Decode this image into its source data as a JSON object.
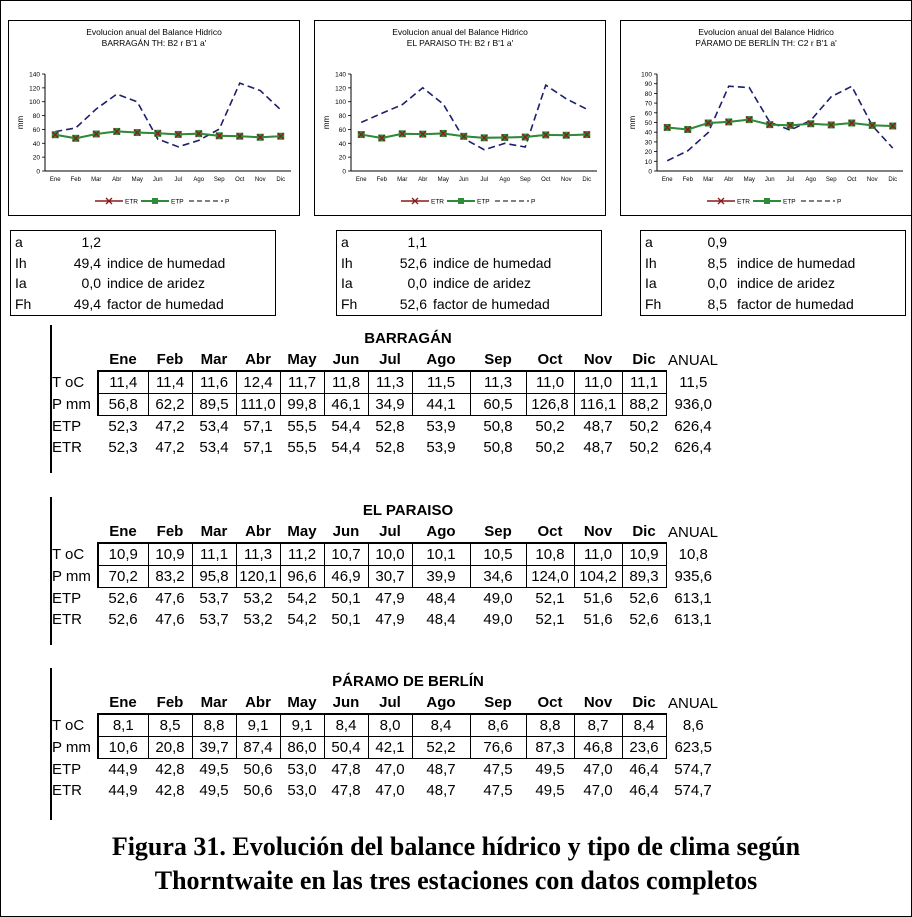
{
  "chart_data": [
    {
      "type": "line",
      "title": "Evolucion anual del Balance Hidrico",
      "subtitle": "BARRAGÁN TH: B2 r B'1 a'",
      "ylabel": "mm",
      "ylim": [
        0,
        140
      ],
      "yticks": [
        "0",
        "20",
        "40",
        "60",
        "80",
        "100",
        "120",
        "140"
      ],
      "categories": [
        "Ene",
        "Feb",
        "Mar",
        "Abr",
        "May",
        "Jun",
        "Jul",
        "Ago",
        "Sep",
        "Oct",
        "Nov",
        "Dic"
      ],
      "series": [
        {
          "name": "ETR",
          "values": [
            52.3,
            47.2,
            53.4,
            57.1,
            55.5,
            54.4,
            52.8,
            53.9,
            50.8,
            50.2,
            48.7,
            50.2
          ],
          "color": "#8b1a1a"
        },
        {
          "name": "ETP",
          "values": [
            52.3,
            47.2,
            53.4,
            57.1,
            55.5,
            54.4,
            52.8,
            53.9,
            50.8,
            50.2,
            48.7,
            50.2
          ],
          "color": "#2e8b3a"
        },
        {
          "name": "P",
          "values": [
            56.8,
            62.2,
            89.5,
            111.0,
            99.8,
            46.1,
            34.9,
            44.1,
            60.5,
            126.8,
            116.1,
            88.2
          ],
          "color": "#1c1f6b"
        }
      ]
    },
    {
      "type": "line",
      "title": "Evolucion anual del Balance Hidrico",
      "subtitle": "EL PARAISO TH: B2 r B'1 a'",
      "ylabel": "mm",
      "ylim": [
        0,
        140
      ],
      "yticks": [
        "0",
        "20",
        "40",
        "60",
        "80",
        "100",
        "120",
        "140"
      ],
      "categories": [
        "Ene",
        "Feb",
        "Mar",
        "Abr",
        "May",
        "Jun",
        "Jul",
        "Ago",
        "Sep",
        "Oct",
        "Nov",
        "Dic"
      ],
      "series": [
        {
          "name": "ETR",
          "values": [
            52.6,
            47.6,
            53.7,
            53.2,
            54.2,
            50.1,
            47.9,
            48.4,
            49.0,
            52.1,
            51.6,
            52.6
          ],
          "color": "#8b1a1a"
        },
        {
          "name": "ETP",
          "values": [
            52.6,
            47.6,
            53.7,
            53.2,
            54.2,
            50.1,
            47.9,
            48.4,
            49.0,
            52.1,
            51.6,
            52.6
          ],
          "color": "#2e8b3a"
        },
        {
          "name": "P",
          "values": [
            70.2,
            83.2,
            95.8,
            120.1,
            96.6,
            46.9,
            30.7,
            39.9,
            34.6,
            124.0,
            104.2,
            89.3
          ],
          "color": "#1c1f6b"
        }
      ]
    },
    {
      "type": "line",
      "title": "Evolucion anual del Balance Hidrico",
      "subtitle": "PÁRAMO DE BERLÍN TH: C2 r B'1 a'",
      "ylabel": "mm",
      "ylim": [
        0,
        100
      ],
      "yticks": [
        "0",
        "10",
        "20",
        "30",
        "40",
        "50",
        "60",
        "70",
        "80",
        "90",
        "100"
      ],
      "categories": [
        "Ene",
        "Feb",
        "Mar",
        "Abr",
        "May",
        "Jun",
        "Jul",
        "Ago",
        "Sep",
        "Oct",
        "Nov",
        "Dic"
      ],
      "series": [
        {
          "name": "ETR",
          "values": [
            44.9,
            42.8,
            49.5,
            50.6,
            53.0,
            47.8,
            47.0,
            48.7,
            47.5,
            49.5,
            47.0,
            46.4
          ],
          "color": "#8b1a1a"
        },
        {
          "name": "ETP",
          "values": [
            44.9,
            42.8,
            49.5,
            50.6,
            53.0,
            47.8,
            47.0,
            48.7,
            47.5,
            49.5,
            47.0,
            46.4
          ],
          "color": "#2e8b3a"
        },
        {
          "name": "P",
          "values": [
            10.6,
            20.8,
            39.7,
            87.4,
            86.0,
            50.4,
            42.1,
            52.2,
            76.6,
            87.3,
            46.8,
            23.6
          ],
          "color": "#1c1f6b"
        }
      ]
    }
  ],
  "chart_labels": [
    {
      "title": "Evolucion anual del Balance Hidrico",
      "subtitle": "BARRAGÁN TH: B2 r B'1 a'",
      "ylabel": "mm",
      "ticks": [
        "140",
        "120",
        "100",
        "80",
        "60",
        "40",
        "20",
        "0"
      ],
      "xt": [
        "Ene",
        "Feb",
        "Mar",
        "Abr",
        "May",
        "Jun",
        "Jul",
        "Ago",
        "Sep",
        "Oct",
        "Nov",
        "Dic"
      ],
      "leg": [
        "ETR",
        "ETP",
        "P"
      ]
    },
    {
      "title": "Evolucion anual del Balance Hidrico",
      "subtitle": "EL PARAISO TH: B2 r B'1 a'",
      "ylabel": "mm",
      "ticks": [
        "140",
        "120",
        "100",
        "80",
        "60",
        "40",
        "20",
        "0"
      ],
      "xt": [
        "Ene",
        "Feb",
        "Mar",
        "Abr",
        "May",
        "Jun",
        "Jul",
        "Ago",
        "Sep",
        "Oct",
        "Nov",
        "Dic"
      ],
      "leg": [
        "ETR",
        "ETP",
        "P"
      ]
    },
    {
      "title": "Evolucion anual del Balance Hidrico",
      "subtitle": "PÁRAMO DE BERLÍN TH: C2 r B'1 a'",
      "ylabel": "mm",
      "ticks": [
        "100",
        "90",
        "80",
        "70",
        "60",
        "50",
        "40",
        "30",
        "20",
        "10",
        "0"
      ],
      "xt": [
        "Ene",
        "Feb",
        "Mar",
        "Abr",
        "May",
        "Jun",
        "Jul",
        "Ago",
        "Sep",
        "Oct",
        "Nov",
        "Dic"
      ],
      "leg": [
        "ETR",
        "ETP",
        "P"
      ]
    }
  ],
  "indices": [
    {
      "rows": [
        [
          "a",
          "1,2",
          ""
        ],
        [
          "Ih",
          "49,4",
          "indice de humedad"
        ],
        [
          "Ia",
          "0,0",
          "indice de aridez"
        ],
        [
          "Fh",
          "49,4",
          "factor de humedad"
        ]
      ]
    },
    {
      "rows": [
        [
          "a",
          "1,1",
          ""
        ],
        [
          "Ih",
          "52,6",
          "indice de humedad"
        ],
        [
          "Ia",
          "0,0",
          "indice de aridez"
        ],
        [
          "Fh",
          "52,6",
          "factor de humedad"
        ]
      ]
    },
    {
      "rows": [
        [
          "a",
          "0,9",
          ""
        ],
        [
          "Ih",
          "8,5",
          "indice de humedad"
        ],
        [
          "Ia",
          "0,0",
          "indice de aridez"
        ],
        [
          "Fh",
          "8,5",
          "factor de humedad"
        ]
      ]
    }
  ],
  "tables": [
    {
      "station": "BARRAGÁN",
      "months": [
        "Ene",
        "Feb",
        "Mar",
        "Abr",
        "May",
        "Jun",
        "Jul",
        "Ago",
        "Sep",
        "Oct",
        "Nov",
        "Dic"
      ],
      "annual_label": "ANUAL",
      "rows": [
        {
          "label": "T oC",
          "values": [
            "11,4",
            "11,4",
            "11,6",
            "12,4",
            "11,7",
            "11,8",
            "11,3",
            "11,5",
            "11,3",
            "11,0",
            "11,0",
            "11,1"
          ],
          "annual": "11,5"
        },
        {
          "label": "P mm",
          "values": [
            "56,8",
            "62,2",
            "89,5",
            "111,0",
            "99,8",
            "46,1",
            "34,9",
            "44,1",
            "60,5",
            "126,8",
            "116,1",
            "88,2"
          ],
          "annual": "936,0"
        },
        {
          "label": "ETP",
          "values": [
            "52,3",
            "47,2",
            "53,4",
            "57,1",
            "55,5",
            "54,4",
            "52,8",
            "53,9",
            "50,8",
            "50,2",
            "48,7",
            "50,2"
          ],
          "annual": "626,4"
        },
        {
          "label": "ETR",
          "values": [
            "52,3",
            "47,2",
            "53,4",
            "57,1",
            "55,5",
            "54,4",
            "52,8",
            "53,9",
            "50,8",
            "50,2",
            "48,7",
            "50,2"
          ],
          "annual": "626,4"
        }
      ]
    },
    {
      "station": "EL PARAISO",
      "months": [
        "Ene",
        "Feb",
        "Mar",
        "Abr",
        "May",
        "Jun",
        "Jul",
        "Ago",
        "Sep",
        "Oct",
        "Nov",
        "Dic"
      ],
      "annual_label": "ANUAL",
      "rows": [
        {
          "label": "T oC",
          "values": [
            "10,9",
            "10,9",
            "11,1",
            "11,3",
            "11,2",
            "10,7",
            "10,0",
            "10,1",
            "10,5",
            "10,8",
            "11,0",
            "10,9"
          ],
          "annual": "10,8"
        },
        {
          "label": "P mm",
          "values": [
            "70,2",
            "83,2",
            "95,8",
            "120,1",
            "96,6",
            "46,9",
            "30,7",
            "39,9",
            "34,6",
            "124,0",
            "104,2",
            "89,3"
          ],
          "annual": "935,6"
        },
        {
          "label": "ETP",
          "values": [
            "52,6",
            "47,6",
            "53,7",
            "53,2",
            "54,2",
            "50,1",
            "47,9",
            "48,4",
            "49,0",
            "52,1",
            "51,6",
            "52,6"
          ],
          "annual": "613,1"
        },
        {
          "label": "ETR",
          "values": [
            "52,6",
            "47,6",
            "53,7",
            "53,2",
            "54,2",
            "50,1",
            "47,9",
            "48,4",
            "49,0",
            "52,1",
            "51,6",
            "52,6"
          ],
          "annual": "613,1"
        }
      ]
    },
    {
      "station": "PÁRAMO DE BERLÍN",
      "months": [
        "Ene",
        "Feb",
        "Mar",
        "Abr",
        "May",
        "Jun",
        "Jul",
        "Ago",
        "Sep",
        "Oct",
        "Nov",
        "Dic"
      ],
      "annual_label": "ANUAL",
      "rows": [
        {
          "label": "T oC",
          "values": [
            "8,1",
            "8,5",
            "8,8",
            "9,1",
            "9,1",
            "8,4",
            "8,0",
            "8,4",
            "8,6",
            "8,8",
            "8,7",
            "8,4"
          ],
          "annual": "8,6"
        },
        {
          "label": "P mm",
          "values": [
            "10,6",
            "20,8",
            "39,7",
            "87,4",
            "86,0",
            "50,4",
            "42,1",
            "52,2",
            "76,6",
            "87,3",
            "46,8",
            "23,6"
          ],
          "annual": "623,5"
        },
        {
          "label": "ETP",
          "values": [
            "44,9",
            "42,8",
            "49,5",
            "50,6",
            "53,0",
            "47,8",
            "47,0",
            "48,7",
            "47,5",
            "49,5",
            "47,0",
            "46,4"
          ],
          "annual": "574,7"
        },
        {
          "label": "ETR",
          "values": [
            "44,9",
            "42,8",
            "49,5",
            "50,6",
            "53,0",
            "47,8",
            "47,0",
            "48,7",
            "47,5",
            "49,5",
            "47,0",
            "46,4"
          ],
          "annual": "574,7"
        }
      ]
    }
  ],
  "caption": {
    "line1": "Figura 31. Evolución del balance hídrico y tipo de clima según",
    "line2": "Thorntwaite en las tres estaciones con datos completos"
  }
}
